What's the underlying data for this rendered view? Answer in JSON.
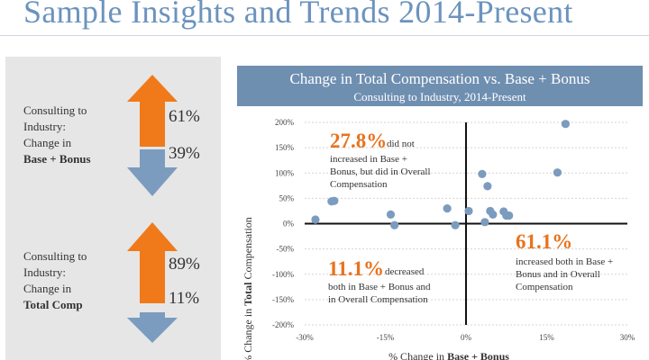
{
  "page": {
    "title": "Sample Insights and Trends 2014-Present"
  },
  "left_panel": {
    "blocks": [
      {
        "label_line1": "Consulting to",
        "label_line2": "Industry:",
        "label_line3": "Change in",
        "label_bold": "Base + Bonus",
        "up_pct": "61%",
        "down_pct": "39%",
        "up_share": 0.61,
        "down_share": 0.39
      },
      {
        "label_line1": "Consulting to",
        "label_line2": "Industry:",
        "label_line3": "Change in",
        "label_bold": "Total Comp",
        "up_pct": "89%",
        "down_pct": "11%",
        "up_share": 0.89,
        "down_share": 0.11
      }
    ],
    "colors": {
      "up": "#f07a1a",
      "down": "#7b9cbf"
    }
  },
  "chart_data": {
    "type": "scatter",
    "title": "Change in Total Compensation vs. Base + Bonus",
    "subtitle": "Consulting to Industry, 2014-Present",
    "xlabel_prefix": "% Change in ",
    "xlabel_bold": "Base + Bonus",
    "ylabel_prefix": "% Change in ",
    "ylabel_bold": "Total",
    "ylabel_suffix": " Compensation",
    "xlim": [
      -30,
      30
    ],
    "ylim": [
      -200,
      200
    ],
    "xticks": [
      "-30%",
      "-15%",
      "0%",
      "15%",
      "30%"
    ],
    "yticks": [
      "200%",
      "150%",
      "100%",
      "50%",
      "0%",
      "-50%",
      "-100%",
      "-150%",
      "-200%"
    ],
    "point_color": "#7b9cbf",
    "accent_color": "#e8731e",
    "points": [
      {
        "x": -28,
        "y": 8
      },
      {
        "x": -25,
        "y": 44
      },
      {
        "x": -24.5,
        "y": 45
      },
      {
        "x": -14,
        "y": 18
      },
      {
        "x": -13.3,
        "y": -3
      },
      {
        "x": -3.5,
        "y": 30
      },
      {
        "x": -2,
        "y": -3
      },
      {
        "x": 0.5,
        "y": 25
      },
      {
        "x": 3,
        "y": 98
      },
      {
        "x": 3.5,
        "y": 3
      },
      {
        "x": 4,
        "y": 74
      },
      {
        "x": 4.5,
        "y": 25
      },
      {
        "x": 5,
        "y": 18
      },
      {
        "x": 7,
        "y": 24
      },
      {
        "x": 7.5,
        "y": 16
      },
      {
        "x": 8,
        "y": 16
      },
      {
        "x": 17,
        "y": 101
      },
      {
        "x": 18.5,
        "y": 197
      }
    ],
    "annotations": [
      {
        "value": "27.8%",
        "text_lines": [
          "did not",
          "increased in Base +",
          "Bonus, but did in Overall",
          "Compensation"
        ]
      },
      {
        "value": "11.1%",
        "text_lines": [
          "decreased",
          "both in Base + Bonus and",
          "in Overall Compensation"
        ]
      },
      {
        "value": "61.1%",
        "text_lines": [
          "increased both in Base +",
          "Bonus and in Overall",
          "Compensation"
        ]
      }
    ]
  }
}
